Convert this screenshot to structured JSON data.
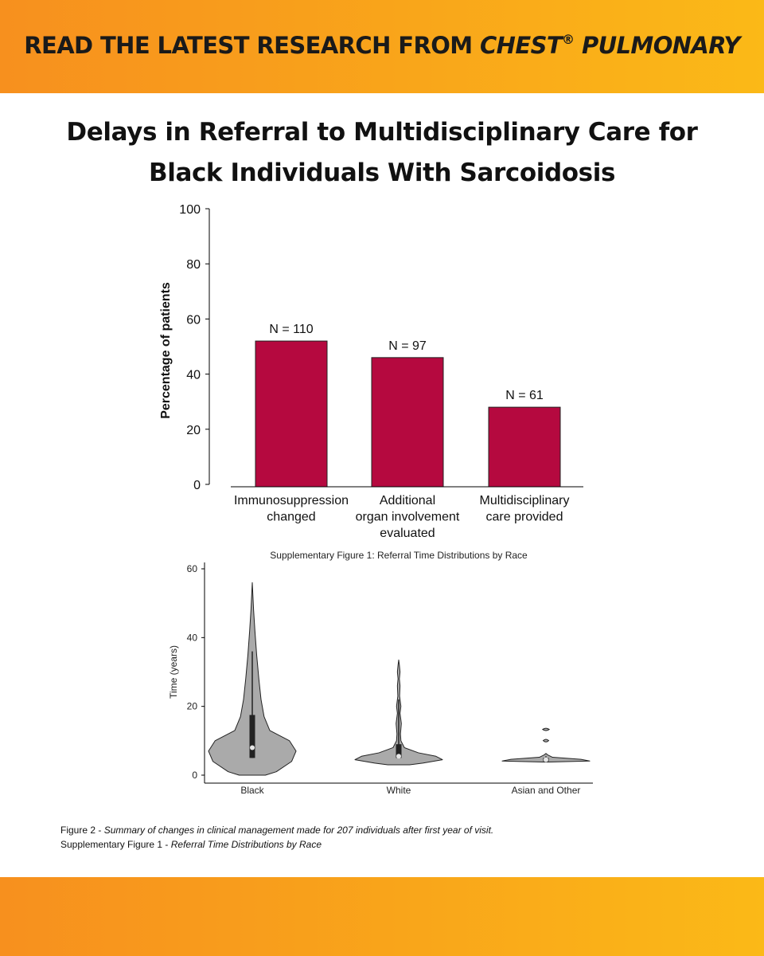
{
  "banner": {
    "prefix": "READ THE LATEST RESEARCH FROM ",
    "brand": "CHEST",
    "reg": "®",
    "suffix": " PULMONARY"
  },
  "title": {
    "line1": "Delays in Referral to Multidisciplinary Care for",
    "line2": "Black Individuals With Sarcoidosis"
  },
  "colors": {
    "banner": "#f9a61a",
    "bar": "#b5093f",
    "violin": "#aaaaaa"
  },
  "chart_data": [
    {
      "type": "bar",
      "title": "",
      "ylabel": "Percentage of patients",
      "xlabel": "",
      "ylim": [
        0,
        100
      ],
      "yticks": [
        0,
        20,
        40,
        60,
        80,
        100
      ],
      "categories": [
        [
          "Immunosuppression",
          "changed"
        ],
        [
          "Additional",
          "organ involvement",
          "evaluated"
        ],
        [
          "Multidisciplinary",
          "care provided"
        ]
      ],
      "values": [
        52,
        46,
        28
      ],
      "bar_labels": [
        "N = 110",
        "N = 97",
        "N = 61"
      ],
      "grid": false,
      "legend": "none"
    },
    {
      "type": "violin",
      "title": "Supplementary Figure 1: Referral Time Distributions by Race",
      "ylabel": "Time (years)",
      "xlabel": "",
      "ylim": [
        0,
        60
      ],
      "yticks": [
        0,
        20,
        40,
        60
      ],
      "categories": [
        "Black",
        "White",
        "Asian and Other"
      ],
      "distributions": [
        {
          "category": "Black",
          "min": 0,
          "max": 56,
          "q1": 5,
          "median": 8,
          "q3": 17.5,
          "whisker_high": 36,
          "profile": [
            [
              0,
              0.3
            ],
            [
              1,
              0.55
            ],
            [
              4,
              0.9
            ],
            [
              7,
              1.0
            ],
            [
              10,
              0.85
            ],
            [
              13,
              0.4
            ],
            [
              17,
              0.27
            ],
            [
              22,
              0.2
            ],
            [
              28,
              0.15
            ],
            [
              35,
              0.1
            ],
            [
              42,
              0.06
            ],
            [
              48,
              0.03
            ],
            [
              52,
              0.015
            ],
            [
              56,
              0
            ]
          ]
        },
        {
          "category": "White",
          "min": 3,
          "max": 33.5,
          "q1": 5,
          "median": 5.5,
          "q3": 9,
          "whisker_high": 22,
          "profile": [
            [
              3,
              0.25
            ],
            [
              3.5,
              0.55
            ],
            [
              4.5,
              1.0
            ],
            [
              5.5,
              0.85
            ],
            [
              6.5,
              0.45
            ],
            [
              8,
              0.13
            ],
            [
              10,
              0.05
            ],
            [
              12,
              0.04
            ],
            [
              15,
              0.06
            ],
            [
              18,
              0.03
            ],
            [
              20,
              0.05
            ],
            [
              23,
              0.02
            ],
            [
              26,
              0.03
            ],
            [
              28,
              0.015
            ],
            [
              30,
              0.03
            ],
            [
              32,
              0.015
            ],
            [
              33.5,
              0
            ]
          ]
        },
        {
          "category": "Asian and Other",
          "min": 3.8,
          "max": 13.5,
          "q1": 4,
          "median": 4.5,
          "q3": 5,
          "whisker_high": 5.5,
          "profile": [
            [
              3.8,
              0
            ],
            [
              4.1,
              1.0
            ],
            [
              4.6,
              0.8
            ],
            [
              5.2,
              0.15
            ],
            [
              5.9,
              0.04
            ],
            [
              6.3,
              0
            ]
          ],
          "islands": [
            [
              9.3,
              10.8,
              0.05
            ],
            [
              12.6,
              14.0,
              0.06
            ]
          ]
        }
      ],
      "grid": false,
      "legend": "none"
    }
  ],
  "caption": {
    "line1_label": "Figure 2 - ",
    "line1_text": "Summary of changes in clinical management made for 207 individuals after first year of visit.",
    "line2_label": "Supplementary Figure 1 - ",
    "line2_text": "Referral Time Distributions by Race"
  }
}
